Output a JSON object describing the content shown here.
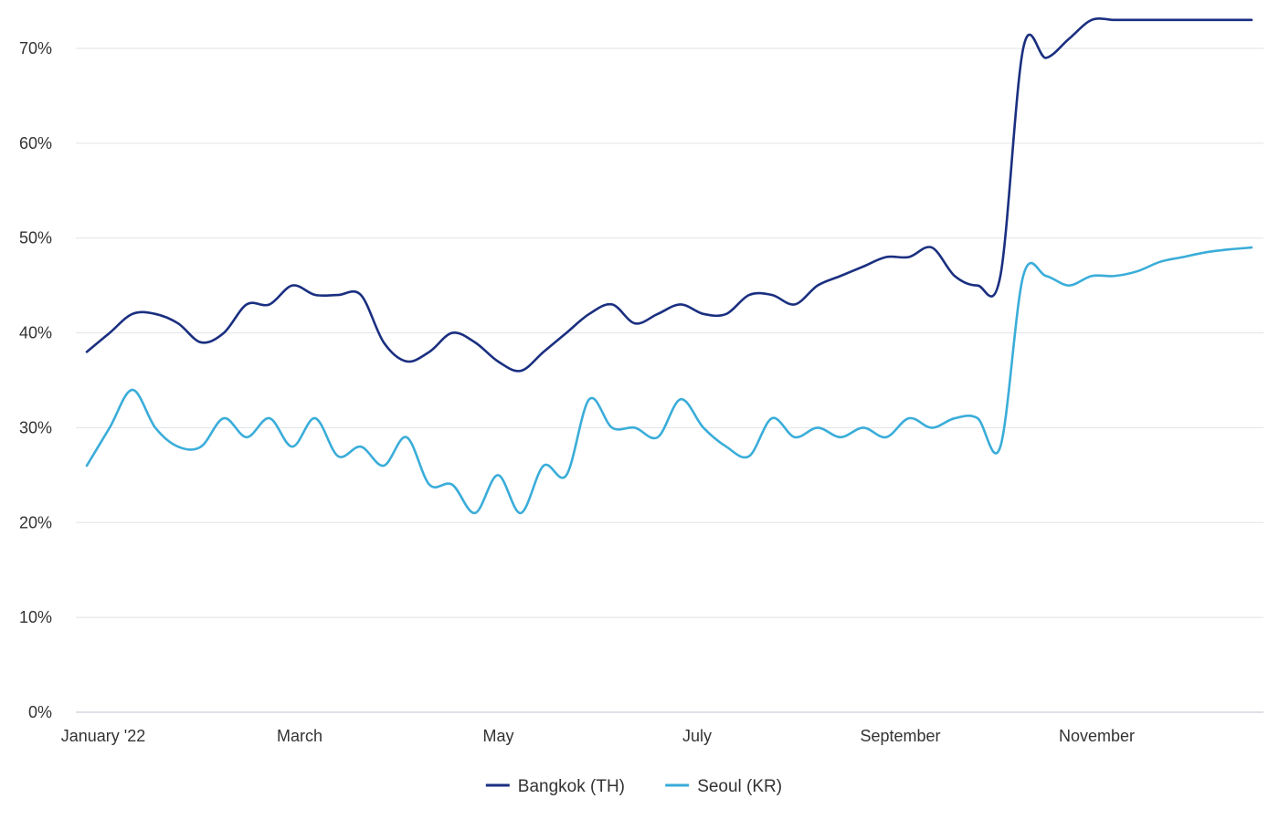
{
  "chart_data": {
    "type": "line",
    "title": "",
    "xlabel": "",
    "ylabel": "",
    "ylim": [
      0,
      70
    ],
    "y_ticks": [
      "0%",
      "10%",
      "20%",
      "30%",
      "40%",
      "50%",
      "60%",
      "70%"
    ],
    "y_tick_values": [
      0,
      10,
      20,
      30,
      40,
      50,
      60,
      70
    ],
    "x_ticks": [
      "January '22",
      "March",
      "May",
      "July",
      "September",
      "November"
    ],
    "x_tick_values": [
      0,
      8.6,
      17.3,
      26,
      34.9,
      43.5
    ],
    "x_range": [
      0,
      51
    ],
    "grid": true,
    "legend_position": "bottom-center",
    "series": [
      {
        "name": "Bangkok (TH)",
        "color": "#1a2f80",
        "x": [
          0,
          1,
          2,
          3,
          4,
          5,
          6,
          7,
          8,
          9,
          10,
          11,
          12,
          13,
          14,
          15,
          16,
          17,
          18,
          19,
          20,
          21,
          22,
          23,
          24,
          25,
          26,
          27,
          28,
          29,
          30,
          31,
          32,
          33,
          34,
          35,
          36,
          37,
          38,
          39,
          40,
          41,
          42,
          43,
          44,
          45,
          46,
          47,
          48,
          49,
          50,
          51
        ],
        "values": [
          38,
          40,
          42,
          42,
          41,
          39,
          40,
          43,
          43,
          45,
          44,
          44,
          44,
          39,
          37,
          38,
          40,
          39,
          37,
          36,
          38,
          40,
          42,
          43,
          41,
          42,
          43,
          42,
          42,
          44,
          44,
          43,
          45,
          46,
          47,
          48,
          48,
          49,
          46,
          45,
          46,
          70,
          69,
          71,
          73,
          73,
          73,
          73,
          73,
          73,
          73,
          73
        ]
      },
      {
        "name": "Seoul (KR)",
        "color": "#3aadd9",
        "x": [
          0,
          1,
          2,
          3,
          4,
          5,
          6,
          7,
          8,
          9,
          10,
          11,
          12,
          13,
          14,
          15,
          16,
          17,
          18,
          19,
          20,
          21,
          22,
          23,
          24,
          25,
          26,
          27,
          28,
          29,
          30,
          31,
          32,
          33,
          34,
          35,
          36,
          37,
          38,
          39,
          40,
          41,
          42,
          43,
          44,
          45,
          46,
          47,
          48,
          49,
          50,
          51
        ],
        "values": [
          26,
          30,
          34,
          30,
          28,
          28,
          31,
          29,
          31,
          28,
          31,
          27,
          28,
          26,
          29,
          24,
          24,
          21,
          25,
          21,
          26,
          25,
          33,
          30,
          30,
          29,
          33,
          30,
          28,
          27,
          31,
          29,
          30,
          29,
          30,
          29,
          31,
          30,
          31,
          31,
          28,
          46,
          46,
          45,
          46,
          46,
          46.5,
          47.5,
          48,
          48.5,
          48.8,
          49
        ]
      }
    ]
  }
}
